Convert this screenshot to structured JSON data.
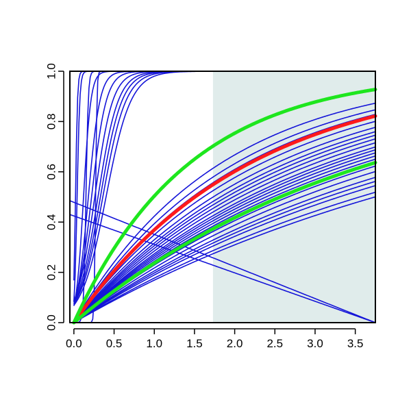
{
  "chart_data": {
    "type": "line",
    "title": "",
    "xlabel": "",
    "ylabel": "",
    "xlim": [
      -0.05,
      3.75
    ],
    "ylim": [
      0,
      1
    ],
    "x_ticks": [
      0,
      0.5,
      1,
      1.5,
      2,
      2.5,
      3,
      3.5
    ],
    "x_tick_labels": [
      "0.0",
      "0.5",
      "1.0",
      "1.5",
      "2.0",
      "2.5",
      "3.0",
      "3.5"
    ],
    "y_ticks": [
      0,
      0.2,
      0.4,
      0.6,
      0.8,
      1
    ],
    "y_tick_labels": [
      "0.0",
      "0.2",
      "0.4",
      "0.6",
      "0.8",
      "1.0"
    ],
    "grid": false,
    "legend": "none",
    "shaded_region": {
      "x_from": 1.73,
      "x_to": 3.75,
      "y_from": 0,
      "y_to": 1,
      "color": "#e0eceb"
    },
    "colors": {
      "background_curves": "#1414d8",
      "highlight_red": "#ff1a1a",
      "highlight_green": "#1ee61e",
      "shade": "#e0eceb"
    },
    "background_curves": [
      {
        "kind": "sigmoid",
        "x0": 0.02,
        "k": 80
      },
      {
        "kind": "sigmoid",
        "x0": 0.04,
        "k": 60
      },
      {
        "kind": "sigmoid",
        "x0": 0.12,
        "k": 22
      },
      {
        "kind": "sigmoid",
        "x0": 0.15,
        "k": 70
      },
      {
        "kind": "sigmoid",
        "x0": 0.18,
        "k": 14
      },
      {
        "kind": "sigmoid",
        "x0": 0.22,
        "k": 11
      },
      {
        "kind": "sigmoid",
        "x0": 0.26,
        "k": 9
      },
      {
        "kind": "sigmoid",
        "x0": 0.27,
        "k": 120
      },
      {
        "kind": "sigmoid",
        "x0": 0.3,
        "k": 8
      },
      {
        "kind": "sigmoid",
        "x0": 0.33,
        "k": 7.5
      },
      {
        "kind": "sigmoid",
        "x0": 0.36,
        "k": 7
      },
      {
        "kind": "sigmoid",
        "x0": 0.4,
        "k": 6.5
      },
      {
        "kind": "exp",
        "rate": 0.185
      },
      {
        "kind": "exp",
        "rate": 0.195
      },
      {
        "kind": "exp",
        "rate": 0.21
      },
      {
        "kind": "exp",
        "rate": 0.22
      },
      {
        "kind": "exp",
        "rate": 0.23
      },
      {
        "kind": "exp",
        "rate": 0.245
      },
      {
        "kind": "exp",
        "rate": 0.26
      },
      {
        "kind": "exp",
        "rate": 0.27
      },
      {
        "kind": "exp",
        "rate": 0.28
      },
      {
        "kind": "exp",
        "rate": 0.29
      },
      {
        "kind": "exp",
        "rate": 0.3
      },
      {
        "kind": "exp",
        "rate": 0.31
      },
      {
        "kind": "exp",
        "rate": 0.32
      },
      {
        "kind": "exp",
        "rate": 0.335
      },
      {
        "kind": "exp",
        "rate": 0.35
      },
      {
        "kind": "exp",
        "rate": 0.365
      },
      {
        "kind": "exp",
        "rate": 0.38
      },
      {
        "kind": "exp",
        "rate": 0.4
      },
      {
        "kind": "exp",
        "rate": 0.43
      },
      {
        "kind": "exp",
        "rate": 0.47
      },
      {
        "kind": "exp",
        "rate": 0.5
      },
      {
        "kind": "exp",
        "rate": 0.55
      },
      {
        "kind": "linear",
        "x": [
          -0.05,
          3.75
        ],
        "y": [
          0.43,
          0.0
        ]
      },
      {
        "kind": "linear",
        "x": [
          -0.05,
          3.75
        ],
        "y": [
          0.485,
          0.0
        ]
      }
    ],
    "highlight_curves": [
      {
        "color": "red",
        "kind": "exp",
        "rate": 0.46
      },
      {
        "color": "green",
        "kind": "exp",
        "rate": 0.27
      },
      {
        "color": "green",
        "kind": "exp",
        "rate": 0.7
      }
    ]
  }
}
